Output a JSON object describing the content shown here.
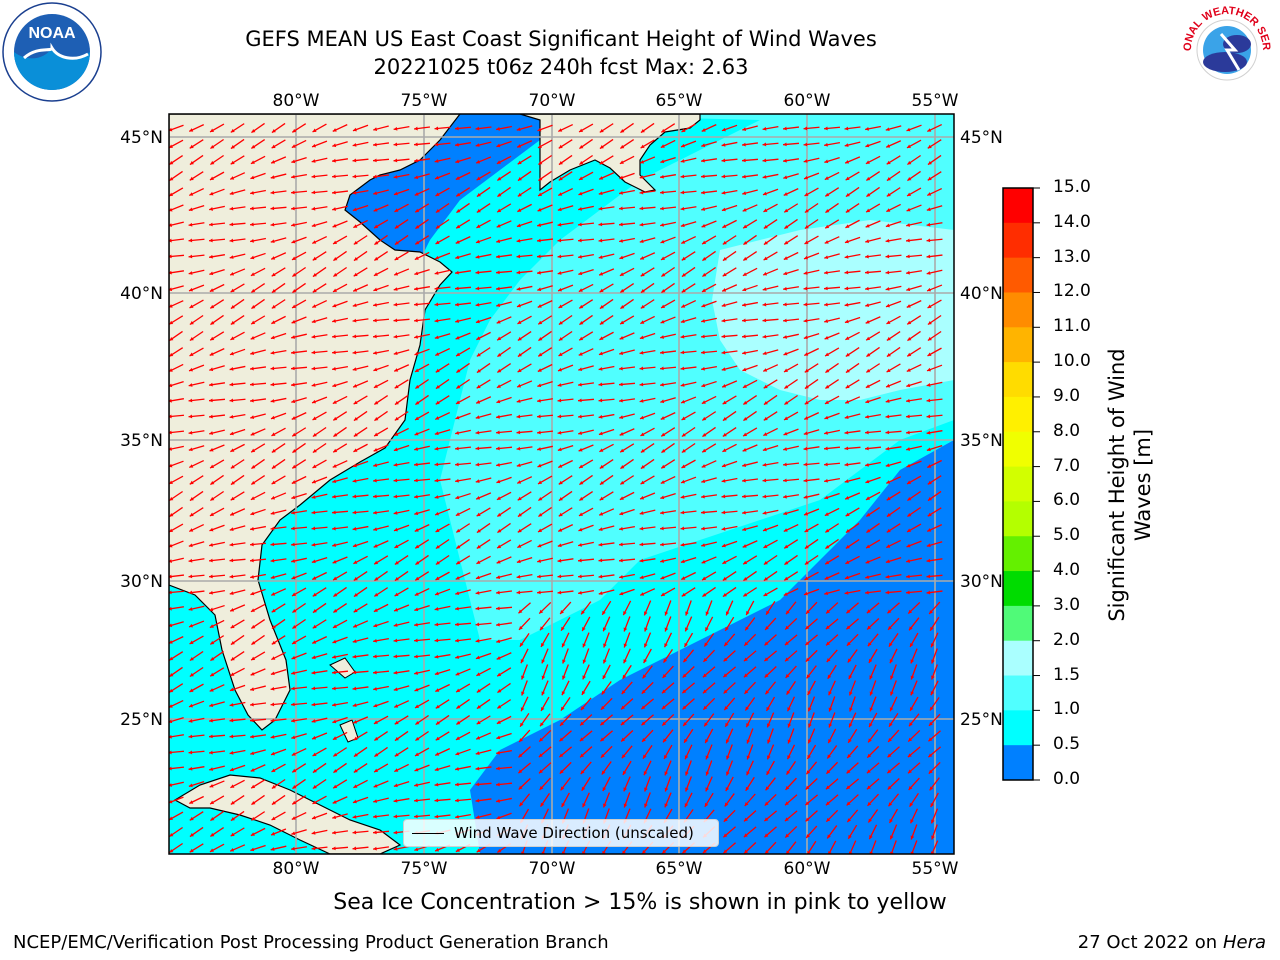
{
  "header": {
    "title_line1": "GEFS MEAN US East Coast Significant Height of Wind Waves",
    "title_line2": "20221025 t06z 240h fcst   Max: 2.63"
  },
  "logos": {
    "left": "NOAA",
    "right": "NATIONAL WEATHER SERVICE"
  },
  "map": {
    "lon_labels": [
      "80°W",
      "75°W",
      "70°W",
      "65°W",
      "60°W",
      "55°W"
    ],
    "lat_labels": [
      "45°N",
      "40°N",
      "35°N",
      "30°N",
      "25°N"
    ],
    "legend": "Wind Wave Direction (unscaled)",
    "colors": {
      "land": "#efeedc",
      "arrow": "#ff0000",
      "grid": "#aaaaaa"
    }
  },
  "colorbar": {
    "label": "Significant Height of Wind Waves [m]",
    "ticks": [
      "15.0",
      "14.0",
      "13.0",
      "12.0",
      "11.0",
      "10.0",
      "9.0",
      "8.0",
      "7.0",
      "6.0",
      "5.0",
      "4.0",
      "3.0",
      "2.0",
      "1.5",
      "1.0",
      "0.5",
      "0.0"
    ],
    "colors_top_to_bottom": [
      "#ff0000",
      "#ff2d00",
      "#ff5a00",
      "#ff8c00",
      "#ffb400",
      "#ffdc00",
      "#fff000",
      "#f0ff00",
      "#d2ff00",
      "#b4ff00",
      "#64f000",
      "#00dc00",
      "#50fa78",
      "#aaffff",
      "#50ffff",
      "#00ffff",
      "#0080ff",
      "#0000ff"
    ]
  },
  "notes": {
    "ice": "Sea Ice Concentration > 15% is shown in pink to yellow",
    "footer_left": "NCEP/EMC/Verification Post Processing Product Generation Branch",
    "footer_date": "27 Oct 2022 on",
    "footer_host": "Hera"
  }
}
